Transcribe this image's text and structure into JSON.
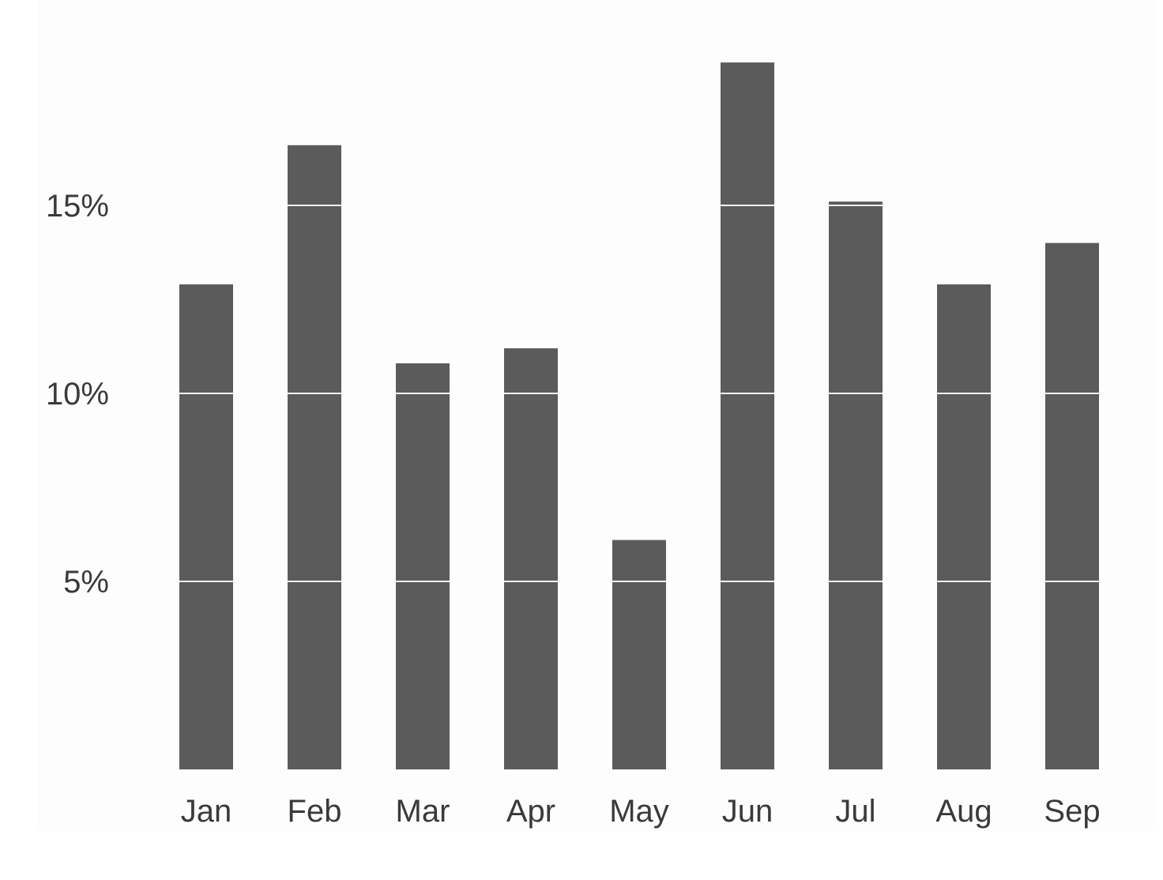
{
  "chart_data": {
    "type": "bar",
    "categories": [
      "Jan",
      "Feb",
      "Mar",
      "Apr",
      "May",
      "Jun",
      "Jul",
      "Aug",
      "Sep"
    ],
    "values": [
      12.9,
      16.6,
      10.8,
      11.2,
      6.1,
      18.8,
      15.1,
      12.9,
      14.0
    ],
    "title": "",
    "xlabel": "",
    "ylabel": "",
    "ylim": [
      0,
      20
    ],
    "yticks": [
      5,
      10,
      15
    ],
    "ytick_labels": [
      "5%",
      "10%",
      "15%"
    ],
    "grid": "white reference lines across bars at each y tick",
    "legend": "none",
    "colors": {
      "bar": "#5b5b5b",
      "gridline": "#f2f2f2",
      "panel_background": "#fdfdfd",
      "page_background": "#ffffff",
      "text": "#3a3a3a"
    }
  }
}
